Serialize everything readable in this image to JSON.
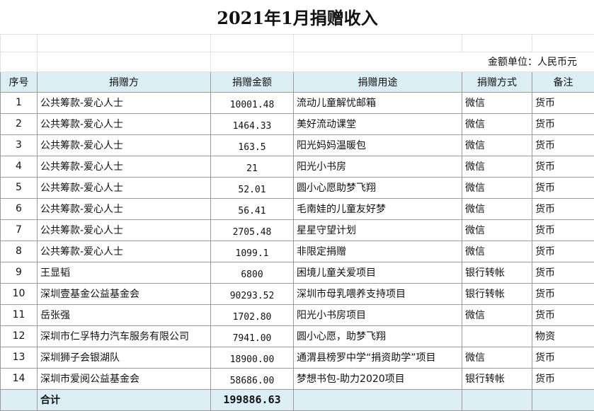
{
  "title": "2021年1月捐赠收入",
  "unit": "金额单位：人民币元",
  "columns": [
    "序号",
    "捐赠方",
    "捐赠金额",
    "捐赠用途",
    "捐赠方式",
    "备注"
  ],
  "rows": [
    {
      "no": "1",
      "donor": "公共筹款-爱心人士",
      "amount": "10001.48",
      "purpose": "流动儿童解忧邮箱",
      "method": "微信",
      "note": "货币"
    },
    {
      "no": "2",
      "donor": "公共筹款-爱心人士",
      "amount": "1464.33",
      "purpose": "美好流动课堂",
      "method": "微信",
      "note": "货币"
    },
    {
      "no": "3",
      "donor": "公共筹款-爱心人士",
      "amount": "163.5",
      "purpose": "阳光妈妈温暖包",
      "method": "微信",
      "note": "货币"
    },
    {
      "no": "4",
      "donor": "公共筹款-爱心人士",
      "amount": "21",
      "purpose": "阳光小书房",
      "method": "微信",
      "note": "货币"
    },
    {
      "no": "5",
      "donor": "公共筹款-爱心人士",
      "amount": "52.01",
      "purpose": "圆小心愿助梦飞翔",
      "method": "微信",
      "note": "货币"
    },
    {
      "no": "6",
      "donor": "公共筹款-爱心人士",
      "amount": "56.41",
      "purpose": "毛南娃的儿童友好梦",
      "method": "微信",
      "note": "货币"
    },
    {
      "no": "7",
      "donor": "公共筹款-爱心人士",
      "amount": "2705.48",
      "purpose": "星星守望计划",
      "method": "微信",
      "note": "货币"
    },
    {
      "no": "8",
      "donor": "公共筹款-爱心人士",
      "amount": "1099.1",
      "purpose": "非限定捐赠",
      "method": "微信",
      "note": "货币"
    },
    {
      "no": "9",
      "donor": "王显韬",
      "amount": "6800",
      "purpose": "困境儿童关爱项目",
      "method": "银行转帐",
      "note": "货币"
    },
    {
      "no": "10",
      "donor": "深圳壹基金公益基金会",
      "amount": "90293.52",
      "purpose": "深圳市母乳喂养支持项目",
      "method": "银行转帐",
      "note": "货币"
    },
    {
      "no": "11",
      "donor": "岳张强",
      "amount": "1702.80",
      "purpose": "阳光小书房项目",
      "method": "微信",
      "note": "货币"
    },
    {
      "no": "12",
      "donor": "深圳市仁孚特力汽车服务有限公司",
      "amount": "7941.00",
      "purpose": "圆小心愿，助梦飞翔",
      "method": "",
      "note": "物资"
    },
    {
      "no": "13",
      "donor": "深圳狮子会银湖队",
      "amount": "18900.00",
      "purpose": "通渭县榜罗中学“捐资助学”项目",
      "method": "微信",
      "note": "货币"
    },
    {
      "no": "14",
      "donor": "深圳市爱阅公益基金会",
      "amount": "58686.00",
      "purpose": "梦想书包-助力2020项目",
      "method": "银行转帐",
      "note": "货币"
    }
  ],
  "total": {
    "label": "合计",
    "amount": "199886.63"
  }
}
